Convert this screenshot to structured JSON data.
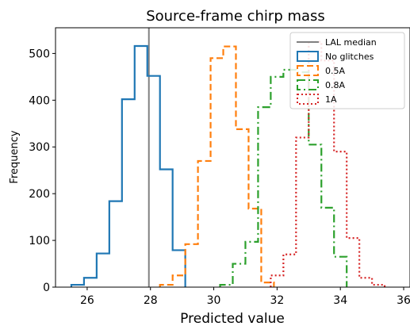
{
  "chart_data": {
    "type": "histogram",
    "title": "Source-frame chirp mass",
    "xlabel": "Predicted value",
    "ylabel": "Frequency",
    "xlim": [
      25.0,
      36.2
    ],
    "ylim": [
      0,
      555
    ],
    "xticks": [
      26,
      28,
      30,
      32,
      34,
      36
    ],
    "yticks": [
      0,
      100,
      200,
      300,
      400,
      500
    ],
    "grid": false,
    "legend_position": "top-right",
    "reference_line": {
      "name": "LAL median",
      "x": 27.95,
      "color": "#808080"
    },
    "series": [
      {
        "name": "No glitches",
        "color": "#1f77b4",
        "dash": "solid",
        "bin_edges": [
          25.5,
          25.9,
          26.3,
          26.7,
          27.1,
          27.5,
          27.9,
          28.3,
          28.7,
          29.1
        ],
        "counts": [
          5,
          20,
          72,
          184,
          402,
          516,
          452,
          252,
          79
        ]
      },
      {
        "name": "0.5A",
        "color": "#ff7f0e",
        "dash": "dashed",
        "bin_edges": [
          28.3,
          28.7,
          29.1,
          29.5,
          29.9,
          30.3,
          30.7,
          31.1,
          31.5,
          31.9
        ],
        "counts": [
          5,
          25,
          92,
          270,
          490,
          515,
          338,
          168,
          10
        ]
      },
      {
        "name": "0.8A",
        "color": "#2ca02c",
        "dash": "dashdot",
        "bin_edges": [
          30.2,
          30.6,
          31.0,
          31.4,
          31.8,
          32.2,
          32.6,
          33.0,
          33.4,
          33.8,
          34.2
        ],
        "counts": [
          5,
          50,
          97,
          385,
          450,
          465,
          460,
          305,
          170,
          65
        ]
      },
      {
        "name": "1A",
        "color": "#d62728",
        "dash": "dotted",
        "bin_edges": [
          31.8,
          32.2,
          32.6,
          33.0,
          33.4,
          33.8,
          34.2,
          34.6,
          35.0,
          35.4
        ],
        "counts": [
          25,
          70,
          320,
          525,
          485,
          290,
          105,
          20,
          5
        ]
      }
    ]
  }
}
